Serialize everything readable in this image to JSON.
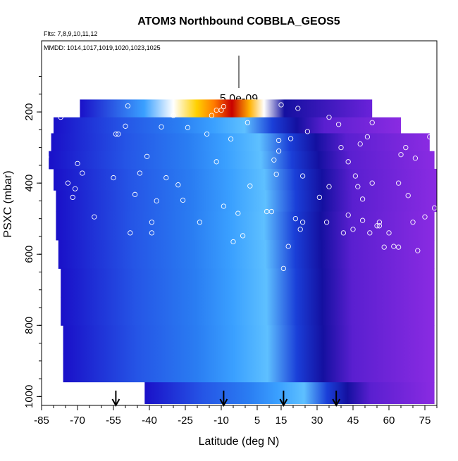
{
  "chart_data": {
    "type": "heatmap",
    "title": "ATOM3 Northbound COBBLA_GEOS5",
    "flights_note": "Flts: 7,8,9,10,11,12",
    "dates_note": "MMDD: 1014,1017,1019,1020,1023,1025",
    "xlabel": "Latitude (deg N)",
    "ylabel": "PSXC (mbar)",
    "xlim": [
      -85,
      80
    ],
    "ylim": [
      1025,
      0
    ],
    "xticks": [
      -85,
      -70,
      -55,
      -40,
      -25,
      -10,
      5,
      15,
      30,
      45,
      60,
      75
    ],
    "yticks": [
      200,
      400,
      600,
      800,
      1000
    ],
    "scale_bar_label": "5.0e-09",
    "grid": false,
    "colors": {
      "high": "#c80000",
      "mid_high": "#ffb000",
      "mid": "#ffffff",
      "mid_low": "#3aa0ff",
      "low": "#1a10c8",
      "background_tracer": "#8a2be2",
      "observation_circle": "#ffffff",
      "arrow": "#000000"
    },
    "arrows_at_latitude": [
      -54,
      -9,
      16,
      38
    ],
    "observations": [
      [
        -83,
        327
      ],
      [
        -82,
        215
      ],
      [
        -77,
        215
      ],
      [
        -74,
        400
      ],
      [
        -72,
        440
      ],
      [
        -71,
        416
      ],
      [
        -70,
        345
      ],
      [
        -68,
        372
      ],
      [
        -63,
        495
      ],
      [
        -55,
        385
      ],
      [
        -54,
        262
      ],
      [
        -53,
        262
      ],
      [
        -50,
        240
      ],
      [
        -49,
        183
      ],
      [
        -48,
        540
      ],
      [
        -46,
        432
      ],
      [
        -44,
        372
      ],
      [
        -41,
        325
      ],
      [
        -39,
        510
      ],
      [
        -39,
        540
      ],
      [
        -37,
        450
      ],
      [
        -35,
        242
      ],
      [
        -33,
        385
      ],
      [
        -30,
        210
      ],
      [
        -28,
        405
      ],
      [
        -26,
        448
      ],
      [
        -24,
        244
      ],
      [
        -19,
        510
      ],
      [
        -16,
        262
      ],
      [
        -14,
        210
      ],
      [
        -12,
        340
      ],
      [
        -12,
        195
      ],
      [
        -10,
        195
      ],
      [
        -9,
        185
      ],
      [
        -9,
        465
      ],
      [
        -6,
        276
      ],
      [
        -5,
        565
      ],
      [
        -3,
        485
      ],
      [
        -1,
        548
      ],
      [
        1,
        230
      ],
      [
        2,
        408
      ],
      [
        9,
        480
      ],
      [
        11,
        480
      ],
      [
        12,
        335
      ],
      [
        13,
        375
      ],
      [
        14,
        280
      ],
      [
        14,
        310
      ],
      [
        15,
        180
      ],
      [
        16,
        640
      ],
      [
        18,
        578
      ],
      [
        19,
        275
      ],
      [
        21,
        500
      ],
      [
        22,
        190
      ],
      [
        23,
        530
      ],
      [
        24,
        510
      ],
      [
        24,
        380
      ],
      [
        26,
        255
      ],
      [
        31,
        440
      ],
      [
        34,
        510
      ],
      [
        35,
        215
      ],
      [
        35,
        410
      ],
      [
        39,
        235
      ],
      [
        40,
        300
      ],
      [
        41,
        540
      ],
      [
        43,
        340
      ],
      [
        43,
        490
      ],
      [
        45,
        530
      ],
      [
        46,
        380
      ],
      [
        47,
        410
      ],
      [
        48,
        290
      ],
      [
        49,
        505
      ],
      [
        49,
        445
      ],
      [
        51,
        270
      ],
      [
        52,
        540
      ],
      [
        53,
        230
      ],
      [
        53,
        400
      ],
      [
        55,
        520
      ],
      [
        56,
        520
      ],
      [
        56,
        510
      ],
      [
        58,
        580
      ],
      [
        60,
        540
      ],
      [
        62,
        578
      ],
      [
        64,
        580
      ],
      [
        64,
        400
      ],
      [
        65,
        320
      ],
      [
        67,
        300
      ],
      [
        68,
        435
      ],
      [
        70,
        510
      ],
      [
        71,
        330
      ],
      [
        72,
        590
      ],
      [
        75,
        495
      ],
      [
        77,
        270
      ],
      [
        79,
        470
      ]
    ]
  }
}
